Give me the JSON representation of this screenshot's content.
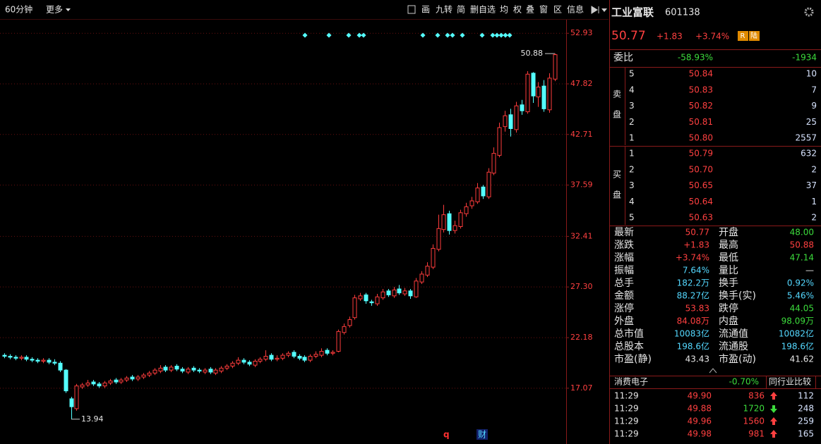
{
  "toolbar": {
    "period": "60分钟",
    "more": "更多",
    "tools": [
      "画",
      "九转",
      "简",
      "删自选",
      "均",
      "权",
      "叠",
      "窗",
      "区",
      "信息"
    ]
  },
  "chart_data": {
    "type": "candlestick",
    "open": [
      20.4,
      20.3,
      20.2,
      20.1,
      20.2,
      20.0,
      19.9,
      19.8,
      19.9,
      19.7,
      19.6,
      18.9,
      16.0,
      15.0,
      17.2,
      17.4,
      17.7,
      17.5,
      17.3,
      17.6,
      17.9,
      17.7,
      17.9,
      18.2,
      18.0,
      18.2,
      18.4,
      18.6,
      18.8,
      19.2,
      18.9,
      19.3,
      19.0,
      18.7,
      19.1,
      18.9,
      18.7,
      19.0,
      18.6,
      18.8,
      19.1,
      19.3,
      19.6,
      19.9,
      19.7,
      19.4,
      19.8,
      20.0,
      20.4,
      20.0,
      20.1,
      20.4,
      20.7,
      20.3,
      20.2,
      19.9,
      20.3,
      20.4,
      20.9,
      20.6,
      20.8,
      22.7,
      23.4,
      24.2,
      26.1,
      26.5,
      25.8,
      25.6,
      26.2,
      26.9,
      26.4,
      27.1,
      26.6,
      26.9,
      26.3,
      27.8,
      28.5,
      29.3,
      31.1,
      33.1,
      34.7,
      33.0,
      33.4,
      34.7,
      35.5,
      35.9,
      37.4,
      36.4,
      38.8,
      40.6,
      43.5,
      44.7,
      43.2,
      45.7,
      45.0,
      48.9,
      46.5,
      47.6,
      45.2,
      48.3
    ],
    "high": [
      20.6,
      20.5,
      20.4,
      20.4,
      20.4,
      20.2,
      20.1,
      20.1,
      20.1,
      20.0,
      19.8,
      19.0,
      16.2,
      17.5,
      17.6,
      17.9,
      17.9,
      17.7,
      17.8,
      18.0,
      18.1,
      18.1,
      18.3,
      18.4,
      18.4,
      18.6,
      18.8,
      19.1,
      19.4,
      19.4,
      19.4,
      19.5,
      19.2,
      19.2,
      19.3,
      19.1,
      19.1,
      19.2,
      19.1,
      19.3,
      19.5,
      19.8,
      20.2,
      20.1,
      19.9,
      20.0,
      20.2,
      20.9,
      20.6,
      20.4,
      20.6,
      20.8,
      20.9,
      20.5,
      20.4,
      20.5,
      20.8,
      21.1,
      21.1,
      20.9,
      23.0,
      23.6,
      24.3,
      26.5,
      26.7,
      26.7,
      26.0,
      26.6,
      27.1,
      27.1,
      27.3,
      27.5,
      27.2,
      27.1,
      28.2,
      28.9,
      29.8,
      31.6,
      34.6,
      35.6,
      35.0,
      34.0,
      35.1,
      35.8,
      36.4,
      37.8,
      37.6,
      39.3,
      41.4,
      43.9,
      45.1,
      45.3,
      46.0,
      46.2,
      49.1,
      49.0,
      48.0,
      48.2,
      48.9,
      50.88
    ],
    "low": [
      20.1,
      20.0,
      19.9,
      19.9,
      19.8,
      19.7,
      19.6,
      19.6,
      19.5,
      19.4,
      18.7,
      16.6,
      13.94,
      14.8,
      17.0,
      17.2,
      17.3,
      17.1,
      17.1,
      17.4,
      17.5,
      17.5,
      17.7,
      17.8,
      17.8,
      18.0,
      18.2,
      18.4,
      18.6,
      18.7,
      18.7,
      18.8,
      18.6,
      18.5,
      18.7,
      18.6,
      18.5,
      18.5,
      18.4,
      18.6,
      18.9,
      19.1,
      19.4,
      19.5,
      19.3,
      19.2,
      19.6,
      19.8,
      19.8,
      19.8,
      19.9,
      20.2,
      20.1,
      19.9,
      19.7,
      19.7,
      20.1,
      20.2,
      20.4,
      20.4,
      20.7,
      22.5,
      23.2,
      24.0,
      25.9,
      25.6,
      25.4,
      25.4,
      26.0,
      26.3,
      26.2,
      26.5,
      26.4,
      26.1,
      26.2,
      27.6,
      28.3,
      29.1,
      30.9,
      32.8,
      32.6,
      32.7,
      33.2,
      34.4,
      35.2,
      35.7,
      36.2,
      36.2,
      38.6,
      40.4,
      43.0,
      42.5,
      42.9,
      44.7,
      44.8,
      45.9,
      45.5,
      45.0,
      44.9,
      48.1
    ],
    "close": [
      20.3,
      20.2,
      20.1,
      20.2,
      20.0,
      19.9,
      19.8,
      19.9,
      19.7,
      19.6,
      18.9,
      16.8,
      15.2,
      17.3,
      17.4,
      17.6,
      17.5,
      17.3,
      17.6,
      17.8,
      17.7,
      17.9,
      18.1,
      18.0,
      18.2,
      18.4,
      18.6,
      18.9,
      19.1,
      18.9,
      19.2,
      19.0,
      18.8,
      19.0,
      18.9,
      18.8,
      18.9,
      18.7,
      18.9,
      19.1,
      19.3,
      19.6,
      19.9,
      19.7,
      19.5,
      19.8,
      20.0,
      20.3,
      20.0,
      20.1,
      20.4,
      20.6,
      20.3,
      20.1,
      19.9,
      20.3,
      20.5,
      20.8,
      20.6,
      20.7,
      22.8,
      23.3,
      24.0,
      26.2,
      26.4,
      25.9,
      25.7,
      26.3,
      26.8,
      26.5,
      27.0,
      26.7,
      26.9,
      26.4,
      27.9,
      28.6,
      29.4,
      31.2,
      33.2,
      34.6,
      33.0,
      33.5,
      34.8,
      35.4,
      36.0,
      37.3,
      36.5,
      38.9,
      40.8,
      43.4,
      44.6,
      43.3,
      45.6,
      45.1,
      48.8,
      46.6,
      47.5,
      45.3,
      48.4,
      50.77
    ],
    "ylim": [
      13,
      54.3
    ],
    "yticks": [
      52.93,
      47.82,
      42.71,
      37.59,
      32.41,
      {
        "value": 27.3,
        "label": "27.30"
      },
      22.18,
      17.07
    ],
    "grid": true,
    "up_color": "#ff3c3c",
    "down_color": "#54ffff",
    "event_labels": [
      "q",
      "财"
    ]
  },
  "quote": {
    "name": "工业富联",
    "code": "601138",
    "price": "50.77",
    "change": "+1.83",
    "change_pct": "+3.74%",
    "badges": [
      "R",
      "陆"
    ],
    "weibi": {
      "label": "委比",
      "pct": "-58.93%",
      "diff": "-1934"
    },
    "sell": {
      "label": [
        "卖",
        "盘"
      ],
      "levels": [
        {
          "level": "5",
          "price": "50.84",
          "volume": "10"
        },
        {
          "level": "4",
          "price": "50.83",
          "volume": "7"
        },
        {
          "level": "3",
          "price": "50.82",
          "volume": "9"
        },
        {
          "level": "2",
          "price": "50.81",
          "volume": "25"
        },
        {
          "level": "1",
          "price": "50.80",
          "volume": "2557"
        }
      ]
    },
    "buy": {
      "label": [
        "买",
        "盘"
      ],
      "levels": [
        {
          "level": "1",
          "price": "50.79",
          "volume": "632"
        },
        {
          "level": "2",
          "price": "50.70",
          "volume": "2"
        },
        {
          "level": "3",
          "price": "50.65",
          "volume": "37"
        },
        {
          "level": "4",
          "price": "50.64",
          "volume": "1"
        },
        {
          "level": "5",
          "price": "50.63",
          "volume": "2"
        }
      ]
    },
    "stats": [
      [
        {
          "label": "最新",
          "value": "50.77",
          "color": "#ff4040"
        },
        {
          "label": "开盘",
          "value": "48.00",
          "color": "#3cdc3c"
        }
      ],
      [
        {
          "label": "涨跌",
          "value": "+1.83",
          "color": "#ff4040"
        },
        {
          "label": "最高",
          "value": "50.88",
          "color": "#ff4040"
        }
      ],
      [
        {
          "label": "涨幅",
          "value": "+3.74%",
          "color": "#ff4040"
        },
        {
          "label": "最低",
          "value": "47.14",
          "color": "#3cdc3c"
        }
      ],
      [
        {
          "label": "振幅",
          "value": "7.64%",
          "color": "#54d8ff"
        },
        {
          "label": "量比",
          "value": "—",
          "color": "#e6e6e6"
        }
      ],
      [
        {
          "label": "总手",
          "value": "182.2万",
          "color": "#54d8ff"
        },
        {
          "label": "换手",
          "value": "0.92%",
          "color": "#54d8ff"
        }
      ],
      [
        {
          "label": "金额",
          "value": "88.27亿",
          "color": "#54d8ff"
        },
        {
          "label": "换手(实)",
          "value": "5.46%",
          "color": "#54d8ff"
        }
      ],
      [
        {
          "label": "涨停",
          "value": "53.83",
          "color": "#ff4040"
        },
        {
          "label": "跌停",
          "value": "44.05",
          "color": "#3cdc3c"
        }
      ],
      [
        {
          "label": "外盘",
          "value": "84.08万",
          "color": "#ff4040"
        },
        {
          "label": "内盘",
          "value": "98.09万",
          "color": "#3cdc3c"
        }
      ],
      [
        {
          "label": "总市值",
          "value": "10083亿",
          "color": "#54d8ff"
        },
        {
          "label": "流通值",
          "value": "10082亿",
          "color": "#54d8ff"
        }
      ],
      [
        {
          "label": "总股本",
          "value": "198.6亿",
          "color": "#54d8ff"
        },
        {
          "label": "流通股",
          "value": "198.6亿",
          "color": "#54d8ff"
        }
      ],
      [
        {
          "label": "市盈(静)",
          "value": "43.43",
          "color": "#e6e6e6"
        },
        {
          "label": "市盈(动)",
          "value": "41.62",
          "color": "#e6e6e6"
        }
      ]
    ],
    "industry": {
      "name": "消费电子",
      "change": "-0.70%",
      "compare": "同行业比较"
    },
    "ticks": [
      {
        "time": "11:29",
        "price": "49.90",
        "volume": "836",
        "dir": "up",
        "count": "112"
      },
      {
        "time": "11:29",
        "price": "49.88",
        "volume": "1720",
        "dir": "down",
        "count": "248"
      },
      {
        "time": "11:29",
        "price": "49.96",
        "volume": "1560",
        "dir": "up",
        "count": "259"
      },
      {
        "time": "11:29",
        "price": "49.98",
        "volume": "981",
        "dir": "up",
        "count": "165"
      }
    ]
  }
}
